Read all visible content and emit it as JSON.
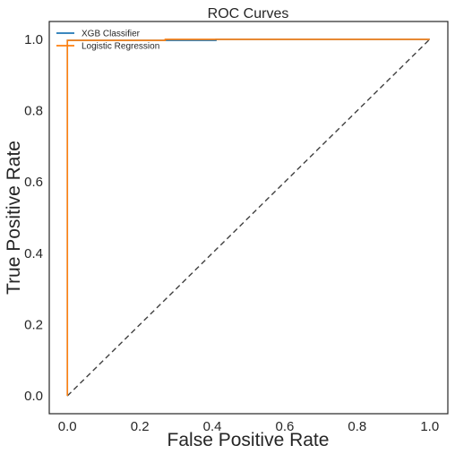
{
  "chart_data": {
    "type": "line",
    "title": "ROC Curves",
    "xlabel": "False Positive Rate",
    "ylabel": "True Positive Rate",
    "xlim": [
      -0.05,
      1.05
    ],
    "ylim": [
      -0.05,
      1.05
    ],
    "xticks": [
      0.0,
      0.2,
      0.4,
      0.6,
      0.8,
      1.0
    ],
    "yticks": [
      0.0,
      0.2,
      0.4,
      0.6,
      0.8,
      1.0
    ],
    "xtick_labels": [
      "0.0",
      "0.2",
      "0.4",
      "0.6",
      "0.8",
      "1.0"
    ],
    "ytick_labels": [
      "0.0",
      "0.2",
      "0.4",
      "0.6",
      "0.8",
      "1.0"
    ],
    "grid": false,
    "legend_position": "top-left",
    "series": [
      {
        "name": "XGB Classifier",
        "color": "#1f77b4",
        "style": "solid",
        "x": [
          0.0,
          0.0,
          0.0,
          0.41,
          0.41,
          1.0
        ],
        "y": [
          0.0,
          0.99,
          0.997,
          0.997,
          1.0,
          1.0
        ]
      },
      {
        "name": "Logistic Regression",
        "color": "#ff7f0e",
        "style": "solid",
        "x": [
          0.0,
          0.0,
          0.0,
          0.27,
          0.27,
          1.0
        ],
        "y": [
          0.0,
          0.99,
          0.997,
          0.997,
          1.0,
          1.0
        ]
      }
    ],
    "reference_line": {
      "color": "#404040",
      "style": "dashed",
      "x": [
        0.0,
        1.0
      ],
      "y": [
        0.0,
        1.0
      ]
    }
  }
}
